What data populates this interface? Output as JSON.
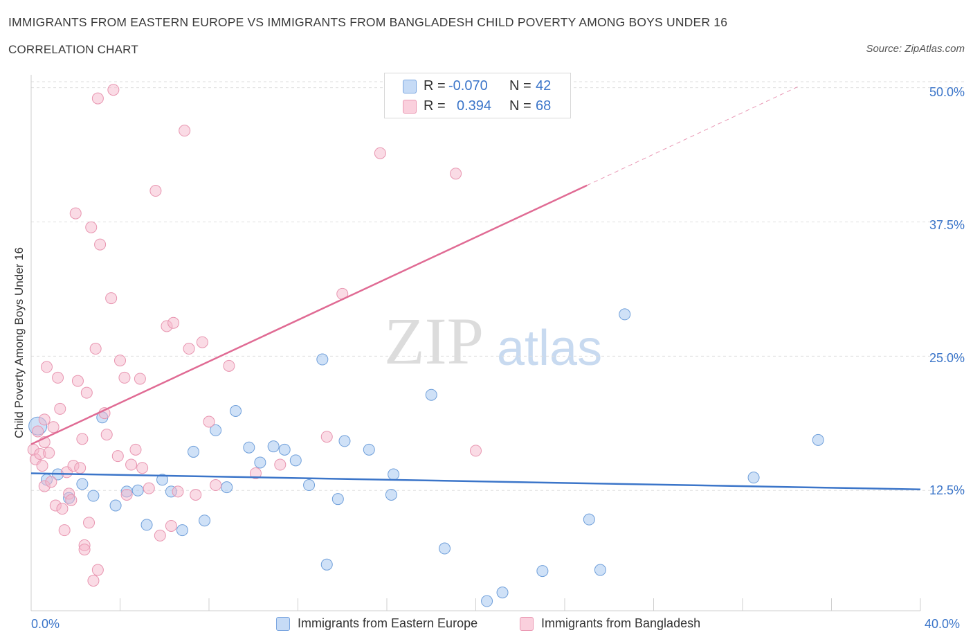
{
  "title": "IMMIGRANTS FROM EASTERN EUROPE VS IMMIGRANTS FROM BANGLADESH CHILD POVERTY AMONG BOYS UNDER 16",
  "subtitle": "CORRELATION CHART",
  "source": "Source: ZipAtlas.com",
  "watermark": {
    "zip": "ZIP",
    "atlas": "atlas"
  },
  "legend_top": [
    {
      "r_label": "R =",
      "r_value": "-0.070",
      "n_label": "N =",
      "n_value": "42",
      "color": "#a8c8f0"
    },
    {
      "r_label": "R =",
      "r_value": "0.394",
      "n_label": "N =",
      "n_value": "68",
      "color": "#f5b8cb"
    }
  ],
  "legend_bottom": [
    {
      "label": "Immigrants from Eastern Europe",
      "color": "#a8c8f0"
    },
    {
      "label": "Immigrants from Bangladesh",
      "color": "#f5b8cb"
    }
  ],
  "x_tick_labels": {
    "min": "0.0%",
    "max": "40.0%"
  },
  "y_tick_labels": [
    "50.0%",
    "37.5%",
    "25.0%",
    "12.5%"
  ],
  "chart_data": {
    "type": "scatter",
    "xlabel": "",
    "ylabel": "Child Poverty Among Boys Under 16",
    "xlim": [
      0,
      40
    ],
    "ylim": [
      1.3,
      51.2
    ],
    "y_ticks": [
      50.0,
      37.5,
      25.0,
      12.5
    ],
    "grid": true,
    "colors": {
      "blue": "#3b75c9",
      "blue_fill": "#a8c8f0",
      "pink": "#e06b94",
      "pink_fill": "#f5b8cb"
    },
    "series": [
      {
        "name": "Immigrants from Eastern Europe",
        "color": "#3b75c9",
        "points": [
          [
            0.3,
            18.5
          ],
          [
            0.7,
            13.5
          ],
          [
            1.2,
            14.0
          ],
          [
            1.7,
            11.8
          ],
          [
            2.3,
            13.1
          ],
          [
            2.8,
            12.0
          ],
          [
            3.2,
            19.3
          ],
          [
            3.8,
            11.1
          ],
          [
            4.3,
            12.4
          ],
          [
            4.8,
            12.5
          ],
          [
            5.2,
            9.3
          ],
          [
            5.9,
            13.5
          ],
          [
            6.3,
            12.4
          ],
          [
            6.8,
            8.8
          ],
          [
            7.3,
            16.1
          ],
          [
            7.8,
            9.7
          ],
          [
            8.3,
            18.1
          ],
          [
            8.8,
            12.8
          ],
          [
            9.2,
            19.9
          ],
          [
            9.8,
            16.5
          ],
          [
            10.3,
            15.1
          ],
          [
            10.9,
            16.6
          ],
          [
            11.4,
            16.3
          ],
          [
            11.9,
            15.3
          ],
          [
            12.5,
            13.0
          ],
          [
            13.1,
            24.7
          ],
          [
            13.3,
            5.6
          ],
          [
            13.8,
            11.7
          ],
          [
            14.1,
            17.1
          ],
          [
            15.2,
            16.3
          ],
          [
            16.2,
            12.1
          ],
          [
            16.3,
            14.0
          ],
          [
            18.0,
            21.4
          ],
          [
            18.6,
            7.1
          ],
          [
            20.5,
            2.2
          ],
          [
            21.2,
            3.0
          ],
          [
            23.0,
            5.0
          ],
          [
            25.1,
            9.8
          ],
          [
            25.6,
            5.1
          ],
          [
            26.7,
            28.9
          ],
          [
            32.5,
            13.7
          ],
          [
            35.4,
            17.2
          ]
        ]
      },
      {
        "name": "Immigrants from Bangladesh",
        "color": "#e06b94",
        "points": [
          [
            0.1,
            16.3
          ],
          [
            0.2,
            15.4
          ],
          [
            0.3,
            18.0
          ],
          [
            0.4,
            15.9
          ],
          [
            0.5,
            14.8
          ],
          [
            0.6,
            17.0
          ],
          [
            0.6,
            12.9
          ],
          [
            0.7,
            24.0
          ],
          [
            0.8,
            16.0
          ],
          [
            0.9,
            13.3
          ],
          [
            1.1,
            11.1
          ],
          [
            1.2,
            23.0
          ],
          [
            1.3,
            20.1
          ],
          [
            1.4,
            10.8
          ],
          [
            1.5,
            8.8
          ],
          [
            1.6,
            14.2
          ],
          [
            1.7,
            12.2
          ],
          [
            1.8,
            11.6
          ],
          [
            1.9,
            14.8
          ],
          [
            2.0,
            38.3
          ],
          [
            2.1,
            22.7
          ],
          [
            2.3,
            17.3
          ],
          [
            2.4,
            7.4
          ],
          [
            2.5,
            21.6
          ],
          [
            2.6,
            9.5
          ],
          [
            2.7,
            37.0
          ],
          [
            2.8,
            4.1
          ],
          [
            2.9,
            25.7
          ],
          [
            3.0,
            5.1
          ],
          [
            3.1,
            35.4
          ],
          [
            3.3,
            19.7
          ],
          [
            3.4,
            17.7
          ],
          [
            3.6,
            30.4
          ],
          [
            3.7,
            49.8
          ],
          [
            3.9,
            15.7
          ],
          [
            4.0,
            24.6
          ],
          [
            4.2,
            23.0
          ],
          [
            4.3,
            12.1
          ],
          [
            4.5,
            14.9
          ],
          [
            4.7,
            16.3
          ],
          [
            5.0,
            14.6
          ],
          [
            5.3,
            12.7
          ],
          [
            5.6,
            40.4
          ],
          [
            5.8,
            8.3
          ],
          [
            6.1,
            27.8
          ],
          [
            6.4,
            28.1
          ],
          [
            6.6,
            12.4
          ],
          [
            6.9,
            46.0
          ],
          [
            7.1,
            25.7
          ],
          [
            7.4,
            12.1
          ],
          [
            7.7,
            26.3
          ],
          [
            8.0,
            18.9
          ],
          [
            8.3,
            13.0
          ],
          [
            8.9,
            24.1
          ],
          [
            10.1,
            14.1
          ],
          [
            11.2,
            14.9
          ],
          [
            13.3,
            17.5
          ],
          [
            14.0,
            30.8
          ],
          [
            15.7,
            43.9
          ],
          [
            19.1,
            42.0
          ],
          [
            20.0,
            16.2
          ],
          [
            2.2,
            14.6
          ],
          [
            2.4,
            7.0
          ],
          [
            1.0,
            18.4
          ],
          [
            4.9,
            22.9
          ],
          [
            3.0,
            49.0
          ],
          [
            6.3,
            9.2
          ],
          [
            0.6,
            19.1
          ]
        ]
      }
    ],
    "trendlines": [
      {
        "series": "Immigrants from Eastern Europe",
        "x": [
          0,
          40
        ],
        "y": [
          14.1,
          12.6
        ],
        "style": "solid"
      },
      {
        "series": "Immigrants from Bangladesh",
        "x": [
          0,
          25.0
        ],
        "y": [
          16.8,
          40.9
        ],
        "style": "solid"
      },
      {
        "series": "Immigrants from Bangladesh",
        "x": [
          25.0,
          34.5
        ],
        "y": [
          40.9,
          50.1
        ],
        "style": "dashed"
      }
    ]
  }
}
